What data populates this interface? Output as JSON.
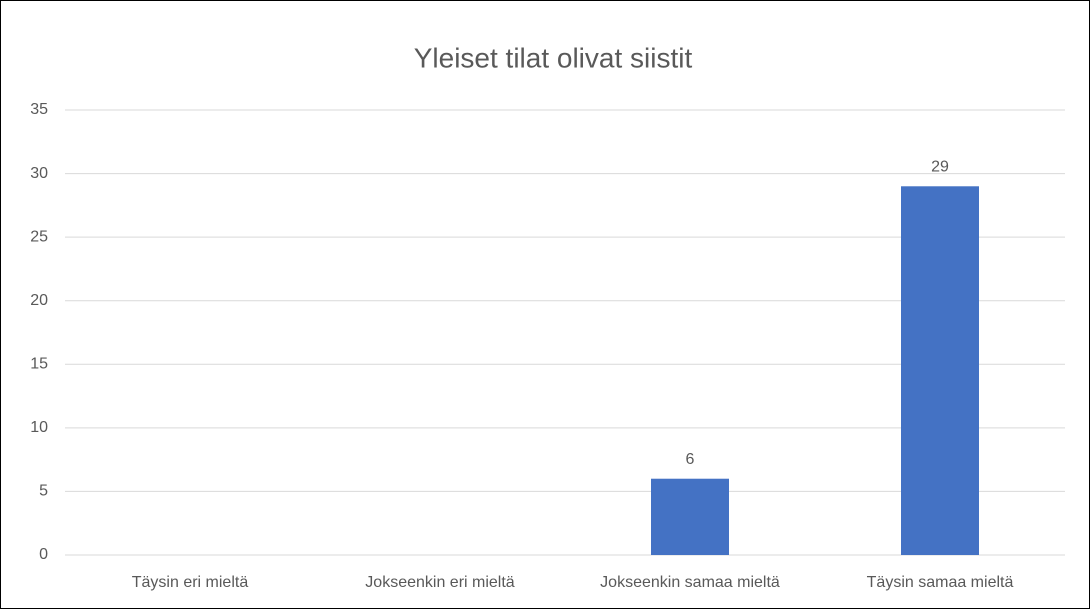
{
  "chart_data": {
    "type": "bar",
    "title": "Yleiset tilat olivat siistit",
    "categories": [
      "Täysin eri mieltä",
      "Jokseenkin eri mieltä",
      "Jokseenkin samaa mieltä",
      "Täysin samaa mieltä"
    ],
    "values": [
      null,
      null,
      6,
      29
    ],
    "color": "#4472c4",
    "ylim": [
      0,
      35
    ],
    "yticks": [
      0,
      5,
      10,
      15,
      20,
      25,
      30,
      35
    ],
    "grid": true,
    "data_labels": true
  }
}
